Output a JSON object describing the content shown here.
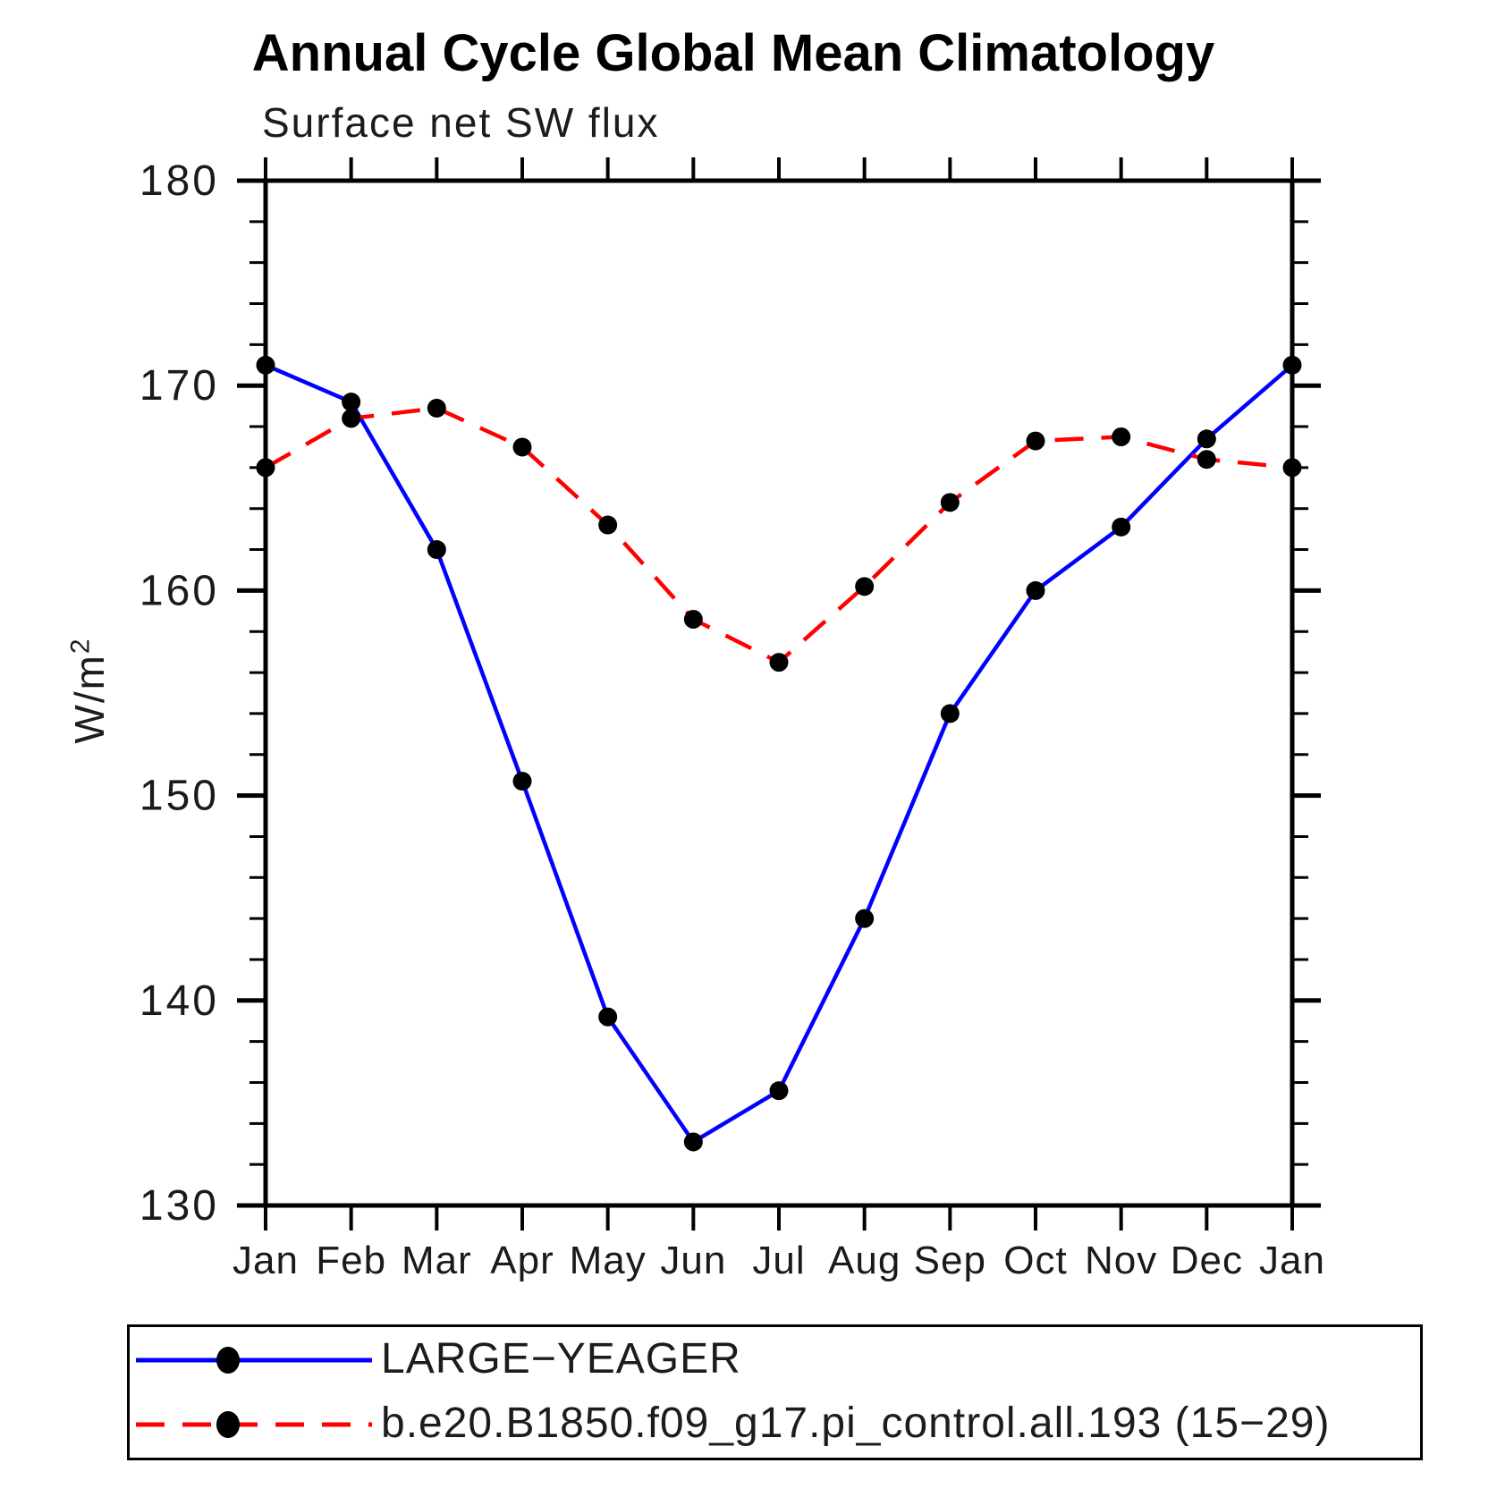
{
  "page": {
    "title": "Annual Cycle Global Mean Climatology",
    "subtitle": "Surface net SW flux"
  },
  "y_axis": {
    "label": "W/m",
    "label_sup": "2",
    "min": 130,
    "max": 180,
    "major_ticks": [
      130,
      140,
      150,
      160,
      170,
      180
    ],
    "minor_step": 2
  },
  "legend": {
    "items": [
      {
        "name": "LARGE−YEAGER",
        "color": "#0000ff",
        "style": "solid",
        "dasharray": "none"
      },
      {
        "name": "b.e20.B1850.f09_g17.pi_control.all.193 (15−29)",
        "color": "#ff0000",
        "style": "dashed",
        "dasharray": "32,20"
      }
    ]
  },
  "chart_data": {
    "type": "line",
    "title": "Annual Cycle Global Mean Climatology",
    "subtitle": "Surface net SW flux",
    "ylabel": "W/m2",
    "ylim": [
      130,
      180
    ],
    "y_major_tick_step": 10,
    "y_minor_tick_step": 2,
    "grid": false,
    "legend_position": "bottom",
    "marker": "filled-circle",
    "marker_color": "#000000",
    "categories": [
      "Jan",
      "Feb",
      "Mar",
      "Apr",
      "May",
      "Jun",
      "Jul",
      "Aug",
      "Sep",
      "Oct",
      "Nov",
      "Dec",
      "Jan"
    ],
    "series": [
      {
        "name": "LARGE−YEAGER",
        "color": "#0000ff",
        "line_style": "solid",
        "values": [
          171.0,
          169.2,
          162.0,
          150.7,
          139.2,
          133.1,
          135.6,
          144.0,
          154.0,
          160.0,
          163.1,
          167.4,
          171.0
        ]
      },
      {
        "name": "b.e20.B1850.f09_g17.pi_control.all.193 (15−29)",
        "color": "#ff0000",
        "line_style": "dashed",
        "values": [
          166.0,
          168.4,
          168.9,
          167.0,
          163.2,
          158.6,
          156.5,
          160.2,
          164.3,
          167.3,
          167.5,
          166.4,
          166.0
        ]
      }
    ]
  }
}
